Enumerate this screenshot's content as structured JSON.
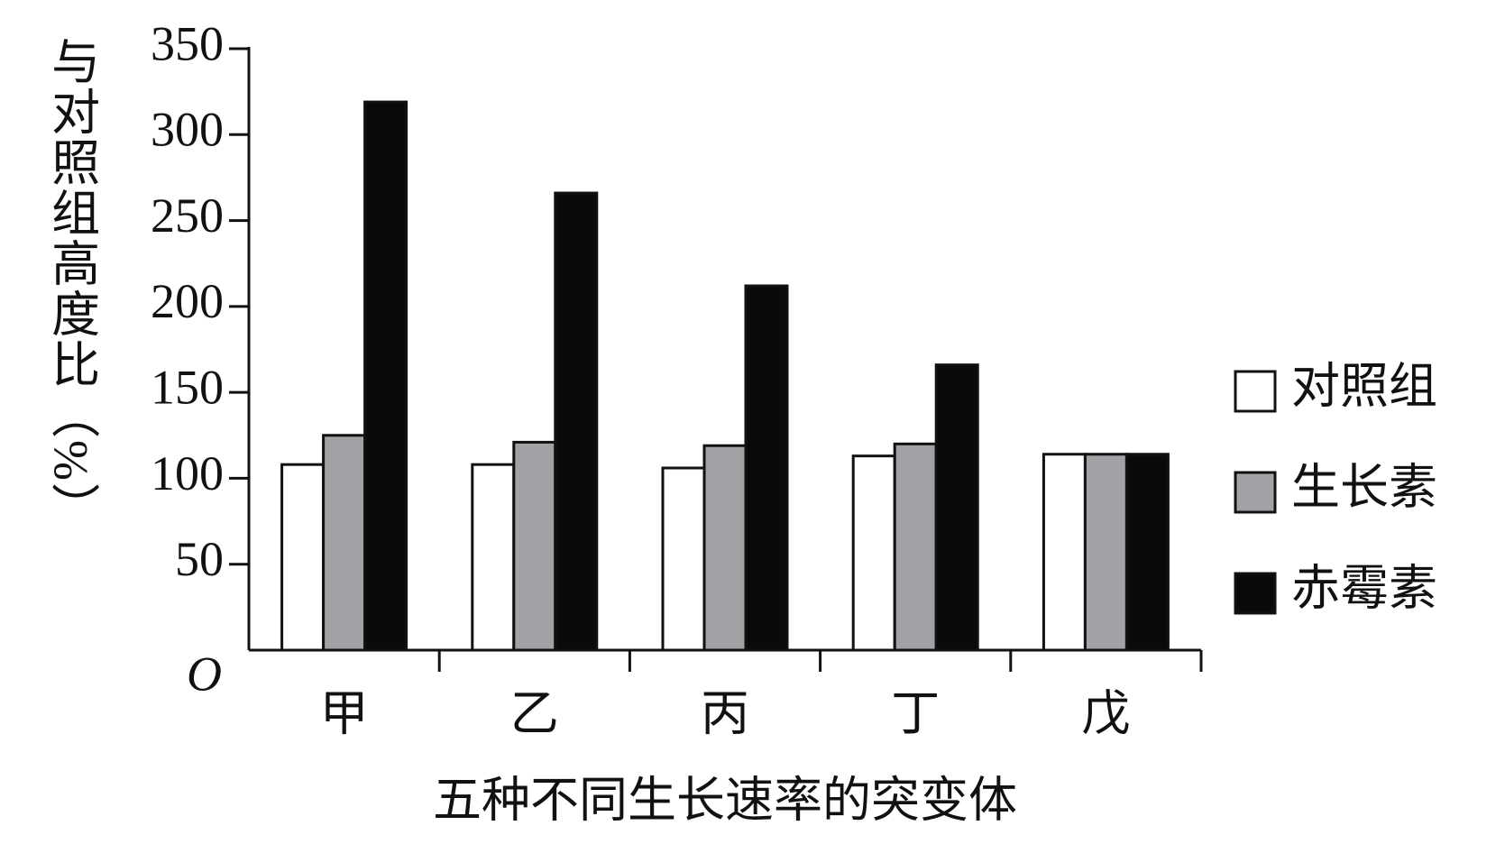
{
  "chart_data": {
    "type": "bar",
    "y_label": "与对照组高度比（%）",
    "x_label": "五种不同生长速率的突变体",
    "categories": [
      "甲",
      "乙",
      "丙",
      "丁",
      "戊"
    ],
    "series": [
      {
        "name": "对照组",
        "color": "#ffffff",
        "values": [
          108,
          108,
          106,
          113,
          114
        ]
      },
      {
        "name": "生长素",
        "color": "#a2a2a6",
        "values": [
          125,
          121,
          119,
          120,
          114
        ]
      },
      {
        "name": "赤霉素",
        "color": "#0a0a0a",
        "values": [
          319,
          266,
          212,
          166,
          114
        ]
      }
    ],
    "ylim": [
      0,
      350
    ],
    "yticks": [
      {
        "value": 0,
        "label": "O"
      },
      50,
      100,
      150,
      200,
      250,
      300,
      350
    ],
    "legend": "right",
    "grid": false
  }
}
